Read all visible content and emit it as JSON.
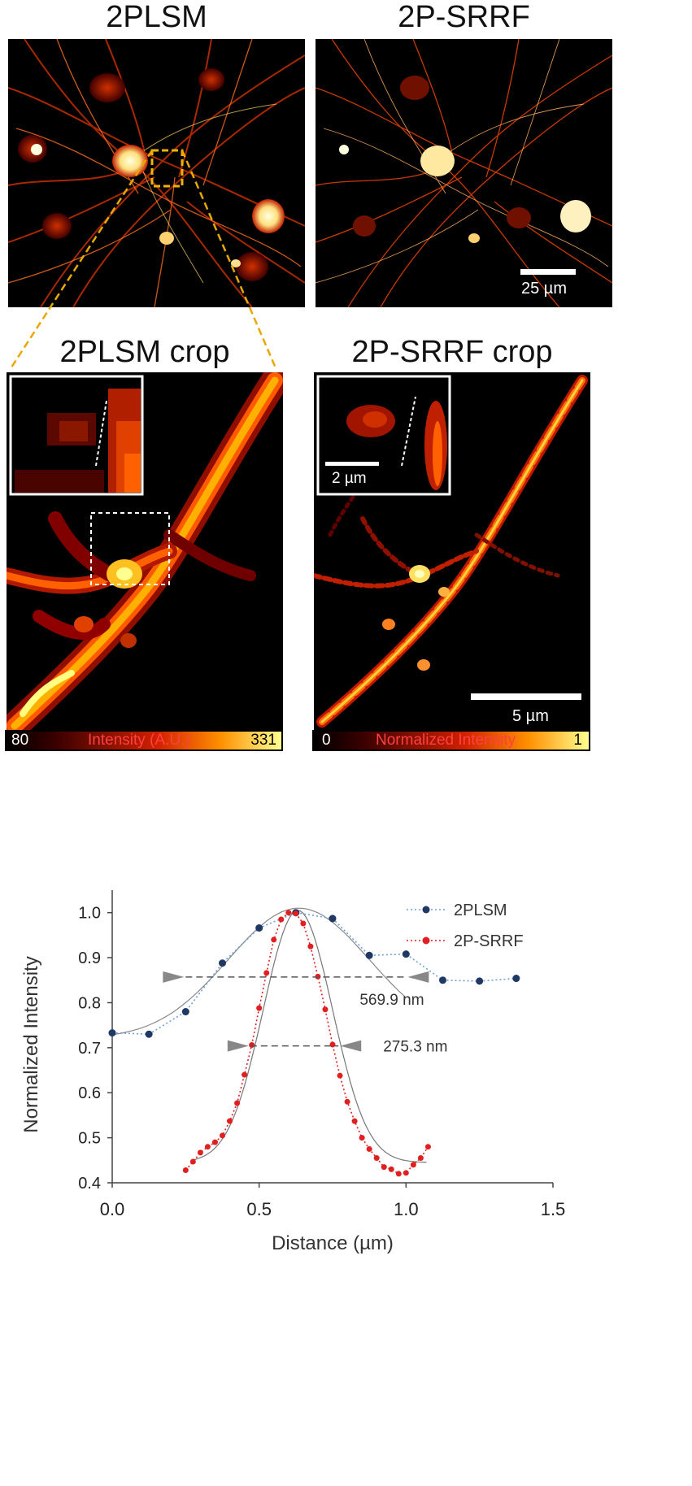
{
  "figure": {
    "panels": {
      "top_left_title": "2PLSM",
      "top_right_title": "2P-SRRF",
      "crop_left_title": "2PLSM crop",
      "crop_right_title": "2P-SRRF crop",
      "scalebar_top": "25 µm",
      "scalebar_inset": "2 µm",
      "scalebar_crop": "5 µm"
    },
    "colorbars": {
      "left": {
        "min": "80",
        "label": "Intensity (A.U.)",
        "max": "331"
      },
      "right": {
        "min": "0",
        "label": "Normalized Intensity",
        "max": "1"
      }
    },
    "colors": {
      "roi_box": "#f0b400",
      "dashed_line": "#e8a800",
      "colormap_dark": "#3a0000",
      "colormap_mid": "#d22000",
      "colormap_bright": "#ffff90"
    }
  },
  "chart_data": {
    "type": "line",
    "xlabel": "Distance (µm)",
    "ylabel": "Normalized Intensity",
    "xlim": [
      0,
      1.5
    ],
    "ylim": [
      0.4,
      1.05
    ],
    "xticks": [
      "0.0",
      "0.5",
      "1.0",
      "1.5"
    ],
    "yticks": [
      "0.4",
      "0.5",
      "0.6",
      "0.7",
      "0.8",
      "0.9",
      "1.0"
    ],
    "legend_position": "top-right",
    "series": [
      {
        "name": "2PLSM",
        "color": "#1f3864",
        "line_color": "#6f9fd8",
        "x": [
          0.0,
          0.125,
          0.25,
          0.375,
          0.5,
          0.625,
          0.75,
          0.875,
          1.0,
          1.125,
          1.25,
          1.375
        ],
        "y": [
          0.733,
          0.73,
          0.78,
          0.888,
          0.966,
          1.0,
          0.987,
          0.905,
          0.908,
          0.85,
          0.848,
          0.854
        ]
      },
      {
        "name": "2P-SRRF",
        "color": "#e02020",
        "line_color": "#e02020",
        "x": [
          0.25,
          0.275,
          0.3,
          0.325,
          0.35,
          0.375,
          0.4,
          0.425,
          0.45,
          0.475,
          0.5,
          0.525,
          0.55,
          0.575,
          0.6,
          0.625,
          0.65,
          0.675,
          0.7,
          0.725,
          0.75,
          0.775,
          0.8,
          0.825,
          0.85,
          0.875,
          0.9,
          0.925,
          0.95,
          0.975,
          1.0,
          1.025,
          1.05,
          1.075
        ],
        "y": [
          0.428,
          0.447,
          0.467,
          0.48,
          0.49,
          0.505,
          0.537,
          0.577,
          0.64,
          0.706,
          0.788,
          0.866,
          0.94,
          0.985,
          1.0,
          0.998,
          0.976,
          0.925,
          0.858,
          0.785,
          0.707,
          0.638,
          0.58,
          0.537,
          0.5,
          0.475,
          0.455,
          0.435,
          0.43,
          0.42,
          0.422,
          0.44,
          0.455,
          0.48
        ]
      }
    ],
    "annotations": [
      {
        "text": "569.9 nm",
        "y": 0.857,
        "x_start": 0.25,
        "x_end": 1.0
      },
      {
        "text": "275.3 nm",
        "y": 0.704,
        "x_start": 0.47,
        "x_end": 0.77
      }
    ]
  }
}
